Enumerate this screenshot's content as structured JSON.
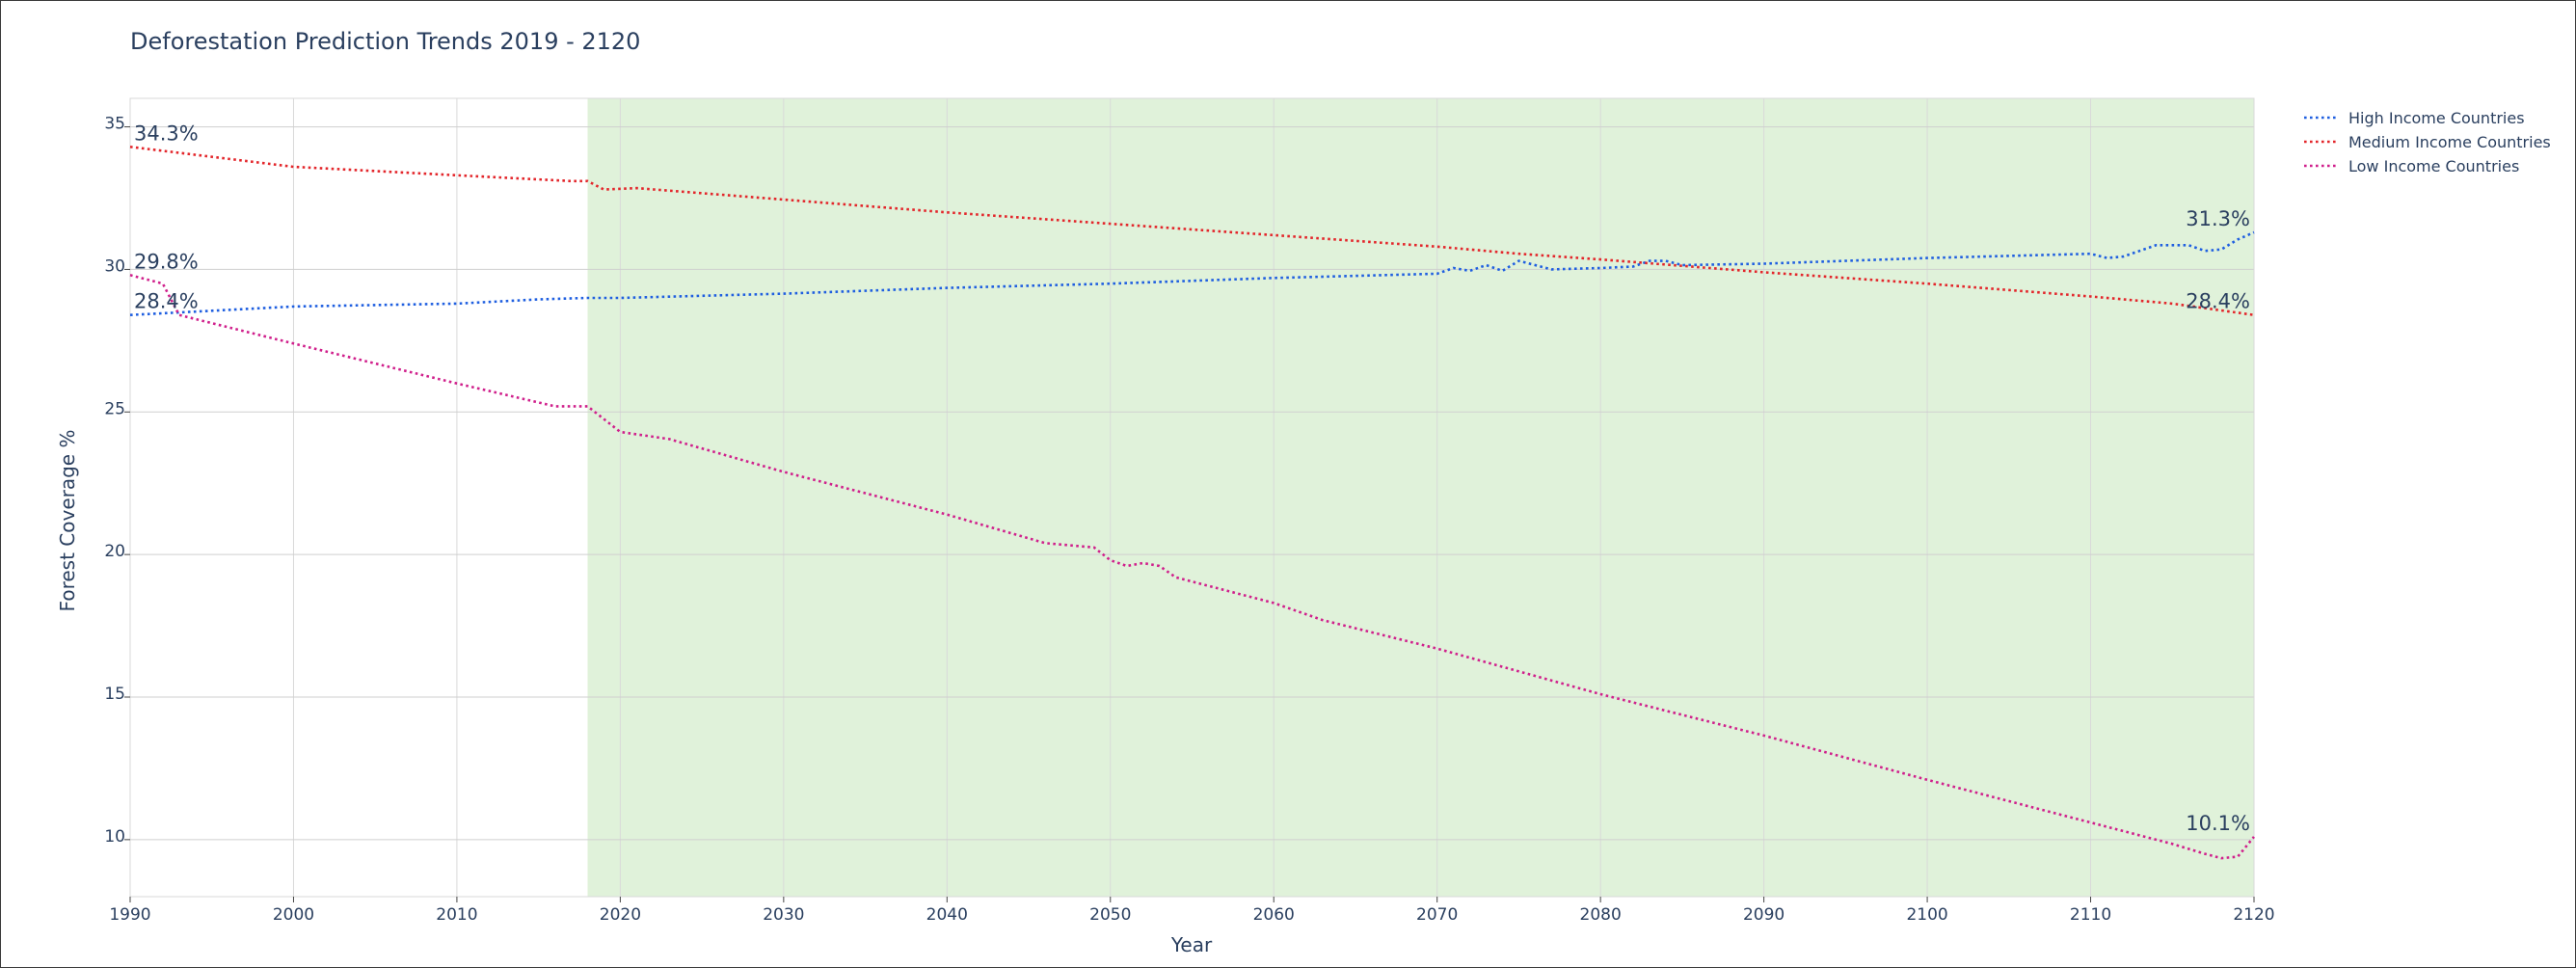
{
  "chart_data": {
    "type": "line",
    "title": "Deforestation Prediction Trends 2019 - 2120",
    "xlabel": "Year",
    "ylabel": "Forest Coverage %",
    "xlim": [
      1990,
      2120
    ],
    "ylim": [
      8,
      36
    ],
    "x_ticks": [
      1990,
      2000,
      2010,
      2020,
      2030,
      2040,
      2050,
      2060,
      2070,
      2080,
      2090,
      2100,
      2110,
      2120
    ],
    "y_ticks": [
      10,
      15,
      20,
      25,
      30,
      35
    ],
    "grid": true,
    "legend_position": "top-right",
    "shaded_region": {
      "x_start": 2018,
      "x_end": 2120,
      "color": "#e0f2da"
    },
    "series": [
      {
        "name": "High Income Countries",
        "color": "#1f5fe0",
        "dash": "dot",
        "points": [
          [
            1990,
            28.4
          ],
          [
            1995,
            28.55
          ],
          [
            2000,
            28.7
          ],
          [
            2005,
            28.75
          ],
          [
            2010,
            28.8
          ],
          [
            2015,
            28.95
          ],
          [
            2018,
            29.0
          ],
          [
            2020,
            29.0
          ],
          [
            2030,
            29.15
          ],
          [
            2040,
            29.35
          ],
          [
            2050,
            29.5
          ],
          [
            2060,
            29.7
          ],
          [
            2070,
            29.85
          ],
          [
            2071,
            30.05
          ],
          [
            2072,
            29.95
          ],
          [
            2073,
            30.15
          ],
          [
            2074,
            29.95
          ],
          [
            2075,
            30.3
          ],
          [
            2076,
            30.15
          ],
          [
            2077,
            30.0
          ],
          [
            2080,
            30.05
          ],
          [
            2082,
            30.1
          ],
          [
            2083,
            30.3
          ],
          [
            2084,
            30.3
          ],
          [
            2085,
            30.15
          ],
          [
            2090,
            30.2
          ],
          [
            2100,
            30.4
          ],
          [
            2110,
            30.55
          ],
          [
            2111,
            30.4
          ],
          [
            2112,
            30.45
          ],
          [
            2113,
            30.65
          ],
          [
            2114,
            30.85
          ],
          [
            2116,
            30.85
          ],
          [
            2117,
            30.65
          ],
          [
            2118,
            30.7
          ],
          [
            2119,
            31.05
          ],
          [
            2120,
            31.3
          ]
        ]
      },
      {
        "name": "Medium Income Countries",
        "color": "#e3262b",
        "dash": "dot",
        "points": [
          [
            1990,
            34.3
          ],
          [
            2000,
            33.6
          ],
          [
            2010,
            33.3
          ],
          [
            2017,
            33.1
          ],
          [
            2018,
            33.1
          ],
          [
            2019,
            32.8
          ],
          [
            2021,
            32.85
          ],
          [
            2030,
            32.45
          ],
          [
            2040,
            32.0
          ],
          [
            2050,
            31.6
          ],
          [
            2060,
            31.2
          ],
          [
            2070,
            30.8
          ],
          [
            2075,
            30.55
          ],
          [
            2080,
            30.35
          ],
          [
            2090,
            29.9
          ],
          [
            2100,
            29.5
          ],
          [
            2110,
            29.05
          ],
          [
            2115,
            28.8
          ],
          [
            2120,
            28.4
          ]
        ]
      },
      {
        "name": "Low Income Countries",
        "color": "#d0208c",
        "dash": "dot",
        "points": [
          [
            1990,
            29.8
          ],
          [
            1992,
            29.5
          ],
          [
            1993,
            28.4
          ],
          [
            2000,
            27.4
          ],
          [
            2010,
            26.0
          ],
          [
            2016,
            25.2
          ],
          [
            2018,
            25.2
          ],
          [
            2020,
            24.3
          ],
          [
            2023,
            24.05
          ],
          [
            2030,
            22.9
          ],
          [
            2040,
            21.4
          ],
          [
            2046,
            20.4
          ],
          [
            2049,
            20.25
          ],
          [
            2050,
            19.8
          ],
          [
            2051,
            19.6
          ],
          [
            2052,
            19.7
          ],
          [
            2053,
            19.6
          ],
          [
            2054,
            19.2
          ],
          [
            2060,
            18.3
          ],
          [
            2063,
            17.7
          ],
          [
            2070,
            16.7
          ],
          [
            2080,
            15.1
          ],
          [
            2090,
            13.65
          ],
          [
            2100,
            12.1
          ],
          [
            2110,
            10.6
          ],
          [
            2115,
            9.85
          ],
          [
            2117,
            9.5
          ],
          [
            2118,
            9.35
          ],
          [
            2119,
            9.4
          ],
          [
            2120,
            10.1
          ]
        ]
      }
    ],
    "annotations": [
      {
        "text": "34.3%",
        "x": 1990,
        "y": 34.3,
        "anchor": "start"
      },
      {
        "text": "29.8%",
        "x": 1990,
        "y": 29.8,
        "anchor": "start"
      },
      {
        "text": "28.4%",
        "x": 1990,
        "y": 28.4,
        "anchor": "start"
      },
      {
        "text": "31.3%",
        "x": 2120,
        "y": 31.3,
        "anchor": "end"
      },
      {
        "text": "28.4%",
        "x": 2120,
        "y": 28.4,
        "anchor": "end"
      },
      {
        "text": "10.1%",
        "x": 2120,
        "y": 10.1,
        "anchor": "end"
      }
    ]
  }
}
